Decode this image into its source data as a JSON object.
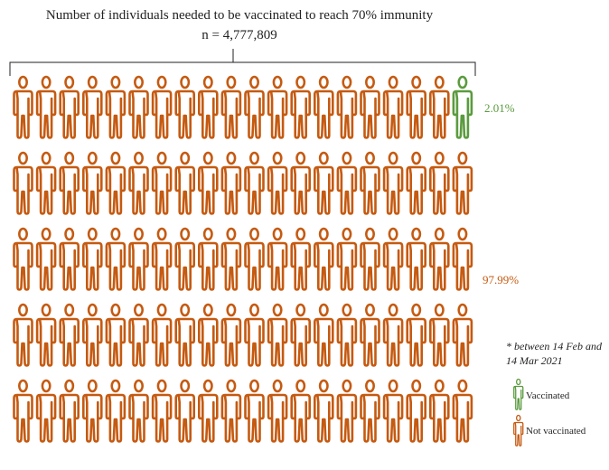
{
  "chart_data": {
    "type": "pictogram",
    "title": "Number of individuals needed to be vaccinated to reach 70% immunity",
    "subtitle": "n = 4,777,809",
    "grid": {
      "rows": 5,
      "cols": 20,
      "units_per_row": 2
    },
    "series": [
      {
        "name": "Vaccinated",
        "percent_label": "2.01%",
        "percent": 2.01,
        "icons": 2,
        "color": "#5b9b3f"
      },
      {
        "name": "Not vaccinated",
        "percent_label": "97.99%",
        "percent": 97.99,
        "icons": 198,
        "color": "#c55a11"
      }
    ],
    "note": "* between 14 Feb and 14 Mar 2021"
  }
}
